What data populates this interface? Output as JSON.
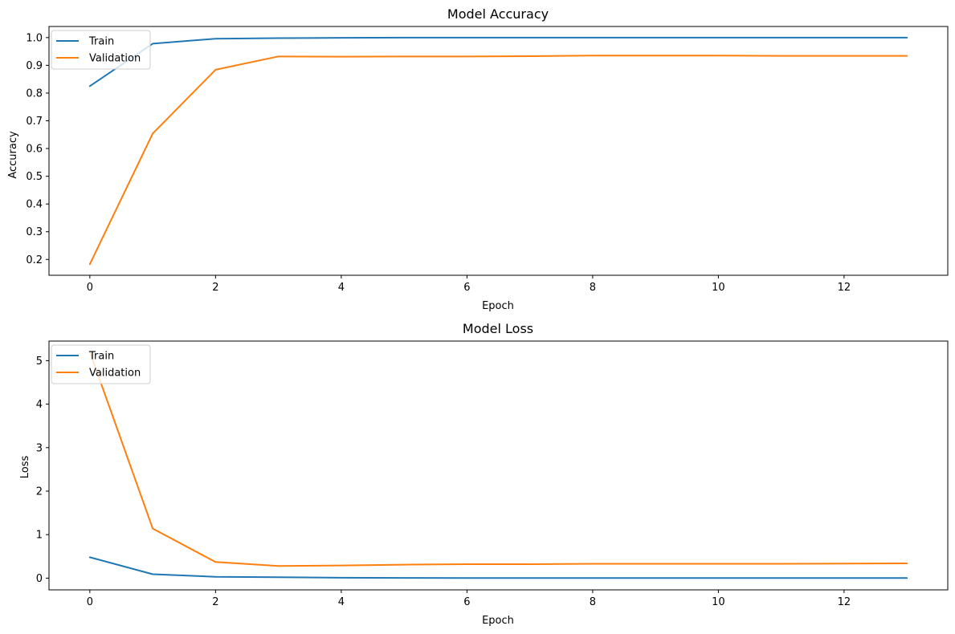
{
  "chart_data": [
    {
      "type": "line",
      "title": "Model Accuracy",
      "xlabel": "Epoch",
      "ylabel": "Accuracy",
      "xlim": [
        -0.65,
        13.65
      ],
      "ylim": [
        0.143,
        1.04
      ],
      "xticks": [
        0,
        2,
        4,
        6,
        8,
        10,
        12
      ],
      "yticks": [
        0.2,
        0.3,
        0.4,
        0.5,
        0.6,
        0.7,
        0.8,
        0.9,
        1.0
      ],
      "ytick_labels": [
        "0.2",
        "0.3",
        "0.4",
        "0.5",
        "0.6",
        "0.7",
        "0.8",
        "0.9",
        "1.0"
      ],
      "x": [
        0,
        1,
        2,
        3,
        4,
        5,
        6,
        7,
        8,
        9,
        10,
        11,
        12,
        13
      ],
      "legend": "upper-left",
      "grid": false,
      "series": [
        {
          "name": "Train",
          "color": "#1f77b4",
          "values": [
            0.825,
            0.978,
            0.996,
            0.998,
            0.999,
            1.0,
            1.0,
            1.0,
            1.0,
            1.0,
            1.0,
            1.0,
            1.0,
            1.0
          ]
        },
        {
          "name": "Validation",
          "color": "#ff7f0e",
          "values": [
            0.183,
            0.654,
            0.884,
            0.932,
            0.931,
            0.932,
            0.932,
            0.933,
            0.935,
            0.935,
            0.935,
            0.934,
            0.934,
            0.934
          ]
        }
      ]
    },
    {
      "type": "line",
      "title": "Model Loss",
      "xlabel": "Epoch",
      "ylabel": "Loss",
      "xlim": [
        -0.65,
        13.65
      ],
      "ylim": [
        -0.27,
        5.45
      ],
      "xticks": [
        0,
        2,
        4,
        6,
        8,
        10,
        12
      ],
      "yticks": [
        0,
        1,
        2,
        3,
        4,
        5
      ],
      "ytick_labels": [
        "0",
        "1",
        "2",
        "3",
        "4",
        "5"
      ],
      "x": [
        0,
        1,
        2,
        3,
        4,
        5,
        6,
        7,
        8,
        9,
        10,
        11,
        12,
        13
      ],
      "legend": "upper-left",
      "grid": false,
      "series": [
        {
          "name": "Train",
          "color": "#1f77b4",
          "values": [
            0.48,
            0.09,
            0.03,
            0.02,
            0.01,
            0.005,
            0.003,
            0.002,
            0.002,
            0.002,
            0.001,
            0.001,
            0.001,
            0.001
          ]
        },
        {
          "name": "Validation",
          "color": "#ff7f0e",
          "values": [
            5.2,
            1.14,
            0.37,
            0.28,
            0.29,
            0.31,
            0.32,
            0.32,
            0.33,
            0.33,
            0.33,
            0.33,
            0.335,
            0.34
          ]
        }
      ]
    }
  ]
}
